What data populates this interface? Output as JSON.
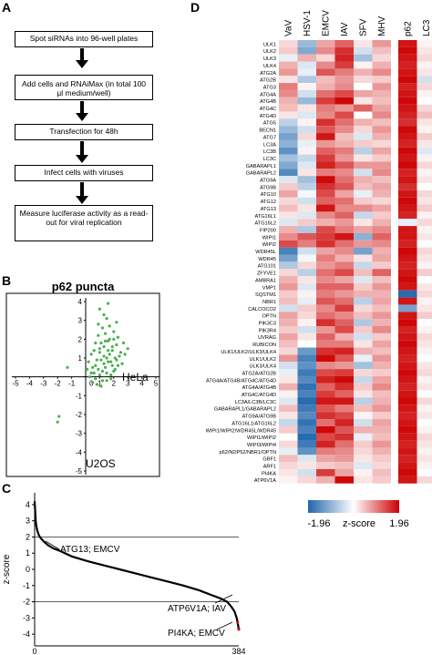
{
  "panels": {
    "A": "A",
    "B": "B",
    "C": "C",
    "D": "D"
  },
  "flow": {
    "steps": [
      "Spot siRNAs into 96-well plates",
      "Add cells and RNAiMax (in total 100 µl medium/well)",
      "Transfection for 48h",
      "Infect cells with viruses",
      "Measure luciferase activity as a read-out for viral replication"
    ]
  },
  "scatter": {
    "title": "p62 puncta",
    "label_right": "HeLa",
    "label_bottom": "U2OS"
  },
  "rank_plot": {
    "ylabel": "z-score",
    "annotations": [
      "ATG13; EMCV",
      "ATP6V1A; IAV",
      "PI4KA; EMCV"
    ]
  },
  "heatmap": {
    "legend_min": "-1.96",
    "legend_label": "z-score",
    "legend_max": "1.96"
  },
  "chart_data": [
    {
      "type": "scatter",
      "title": "p62 puncta",
      "xlim": [
        -5,
        5
      ],
      "ylim": [
        -5,
        4
      ],
      "xticks": [
        "-5",
        "-4",
        "-3",
        "-2",
        "-1",
        "0",
        "1",
        "2",
        "3",
        "4",
        "5"
      ],
      "yticks": [
        "4",
        "3",
        "2",
        "1",
        "0",
        "-1",
        "-2",
        "-3",
        "-4",
        "-5"
      ],
      "x": [
        0.4,
        0.7,
        0.9,
        1.0,
        1.1,
        1.2,
        1.3,
        1.4,
        1.5,
        1.6,
        1.7,
        1.8,
        1.9,
        2.0,
        2.1,
        2.2,
        2.3,
        2.5,
        2.7,
        3.0,
        0.5,
        0.8,
        1.0,
        1.3,
        1.5,
        1.7,
        1.9,
        2.2,
        2.4,
        0.6,
        0.9,
        1.2,
        1.4,
        1.6,
        1.8,
        2.0,
        2.3,
        1.1,
        1.4,
        1.7,
        2.0,
        0.3,
        0.5,
        0.7,
        1.0,
        1.2,
        1.5,
        1.8,
        2.1,
        2.6,
        0.2,
        0.6,
        0.9,
        1.3,
        1.6,
        1.9,
        2.2,
        0.8,
        1.1,
        1.5,
        -1.3,
        -1.9,
        -2.0,
        0.1,
        0.4,
        1.6,
        1.0,
        2.8,
        1.3,
        0.7
      ],
      "y": [
        1.2,
        1.8,
        2.2,
        1.5,
        0.9,
        2.6,
        1.1,
        1.9,
        3.1,
        1.4,
        2.0,
        0.8,
        1.6,
        2.4,
        1.0,
        1.7,
        2.1,
        1.3,
        1.8,
        1.5,
        0.5,
        0.9,
        1.3,
        0.7,
        1.0,
        1.2,
        0.6,
        0.9,
        1.1,
        0.2,
        0.4,
        0.3,
        0.5,
        0.8,
        0.1,
        0.3,
        0.6,
        1.8,
        2.3,
        2.7,
        2.0,
        0.0,
        -0.3,
        -0.1,
        0.1,
        -0.2,
        0.2,
        -0.1,
        0.4,
        0.7,
        0.8,
        1.4,
        2.8,
        3.3,
        1.9,
        1.4,
        2.9,
        -0.4,
        -0.5,
        -0.2,
        0.5,
        -2.1,
        -2.4,
        0.4,
        0.2,
        3.9,
        3.6,
        1.2,
        1.6,
        0.6
      ]
    },
    {
      "type": "line",
      "ylabel": "z-score",
      "xlim": [
        0,
        384
      ],
      "ylim": [
        -4.5,
        4.5
      ],
      "xticks": [
        "0",
        "384"
      ],
      "yticks": [
        "4",
        "3",
        "2",
        "1",
        "0",
        "-1",
        "-2",
        "-3",
        "-4"
      ],
      "reference_lines": [
        2,
        -2
      ],
      "x": [
        0,
        1,
        2,
        3,
        5,
        8,
        12,
        18,
        25,
        35,
        50,
        70,
        100,
        130,
        160,
        190,
        220,
        250,
        280,
        310,
        330,
        350,
        362,
        370,
        376,
        380,
        382,
        384
      ],
      "y": [
        4.2,
        3.6,
        3.0,
        2.7,
        2.4,
        2.1,
        1.9,
        1.7,
        1.5,
        1.3,
        1.1,
        0.8,
        0.5,
        0.25,
        0.0,
        -0.25,
        -0.5,
        -0.75,
        -1.0,
        -1.3,
        -1.55,
        -1.8,
        -2.0,
        -2.3,
        -2.6,
        -3.0,
        -3.3,
        -3.7
      ]
    },
    {
      "type": "heatmap",
      "columns": [
        "VaV",
        "HSV-1",
        "EMCV",
        "IAV",
        "SFV",
        "MHV",
        "p62",
        "LC3"
      ],
      "rows": [
        "ULK1",
        "ULK2",
        "ULK3",
        "ULK4",
        "ATG2A",
        "ATG2B",
        "ATG3",
        "ATG4A",
        "ATG4B",
        "ATG4C",
        "ATG4D",
        "ATG5",
        "BECN1",
        "ATG7",
        "LC3A",
        "LC3B",
        "LC3C",
        "GABARAPL1",
        "GABARAPL2",
        "ATG9A",
        "ATG9B",
        "ATG10",
        "ATG12",
        "ATG13",
        "ATG16L1",
        "ATG16L2",
        "FIP200",
        "WIPI1",
        "WIPI2",
        "WDR45L",
        "WDR45",
        "ATG101",
        "ZFYVE1",
        "AMBRA1",
        "VMP1",
        "SQSTM1",
        "NBR1",
        "CALCOCO2",
        "OPTN",
        "PIK3C3",
        "PIK3R4",
        "UVRAG",
        "RUBICON",
        "ULK1/ULK2/ULK3/ULK4",
        "ULK1/ULK2",
        "ULK3/ULK4",
        "ATG2A/ATG2B",
        "ATG4A/ATG4B/ATG4C/ATG4D",
        "ATG4A/ATG4B",
        "ATG4C/ATG4D",
        "LC3A/LC3B/LC3C",
        "GABARAPL1/GABARAPL2",
        "ATG9A/ATG9B",
        "ATG16L1/ATG16L2",
        "WIPI1/WIPI2/WDR45L/WDR45",
        "WIPI1/WIPI2",
        "WIPI3/WIPI4",
        "p62/NDP52/NBR1/OPTN",
        "GBF1",
        "ARF1",
        "PI4KA",
        "ATP6V1A"
      ],
      "scale": [
        -1.96,
        1.96
      ],
      "values": [
        [
          0.3,
          -0.9,
          0.7,
          1.2,
          0.2,
          0.8,
          1.8,
          0.1
        ],
        [
          0.4,
          -1.1,
          0.9,
          1.6,
          -0.4,
          0.5,
          1.9,
          0.2
        ],
        [
          -0.2,
          0.6,
          0.3,
          1.7,
          -0.8,
          0.3,
          1.8,
          0.3
        ],
        [
          0.6,
          -0.3,
          0.9,
          1.5,
          0.1,
          0.6,
          1.7,
          0.1
        ],
        [
          0.8,
          -0.2,
          1.3,
          1.0,
          0.6,
          0.9,
          1.8,
          0.2
        ],
        [
          0.2,
          -0.7,
          0.5,
          0.8,
          0.3,
          0.4,
          1.9,
          -0.4
        ],
        [
          1.0,
          0.1,
          0.6,
          0.9,
          0.0,
          0.8,
          1.7,
          0.3
        ],
        [
          0.9,
          -0.4,
          1.1,
          1.4,
          0.7,
          0.6,
          1.8,
          0.1
        ],
        [
          0.6,
          -0.9,
          1.5,
          1.9,
          0.2,
          0.5,
          1.9,
          0.0
        ],
        [
          0.5,
          0.2,
          1.0,
          0.8,
          1.2,
          0.7,
          1.8,
          0.3
        ],
        [
          0.2,
          -0.3,
          0.9,
          1.4,
          0.0,
          0.9,
          1.7,
          0.5
        ],
        [
          -0.6,
          0.1,
          1.6,
          1.1,
          0.6,
          0.5,
          1.6,
          0.2
        ],
        [
          -0.9,
          -0.4,
          1.3,
          0.9,
          0.3,
          0.8,
          1.9,
          0.1
        ],
        [
          -1.2,
          0.3,
          1.8,
          0.5,
          -0.3,
          0.6,
          1.8,
          0.4
        ],
        [
          -1.0,
          -0.2,
          0.8,
          0.6,
          0.4,
          0.3,
          1.7,
          0.2
        ],
        [
          -1.4,
          0.1,
          1.2,
          1.0,
          -0.6,
          0.7,
          1.9,
          -0.3
        ],
        [
          -0.8,
          -0.5,
          1.5,
          0.8,
          0.2,
          0.4,
          1.8,
          0.1
        ],
        [
          -1.1,
          -0.3,
          1.7,
          1.3,
          0.8,
          0.8,
          1.9,
          0.3
        ],
        [
          -1.5,
          0.2,
          1.0,
          0.9,
          -0.4,
          0.9,
          1.7,
          0.1
        ],
        [
          -0.3,
          -0.8,
          1.9,
          1.1,
          0.6,
          0.5,
          1.8,
          0.2
        ],
        [
          0.4,
          -0.6,
          1.6,
          1.3,
          0.5,
          0.7,
          1.6,
          0.0
        ],
        [
          0.7,
          -0.1,
          1.4,
          0.7,
          -0.2,
          0.6,
          1.8,
          0.3
        ],
        [
          0.3,
          -0.4,
          1.2,
          1.1,
          0.4,
          0.3,
          1.9,
          0.2
        ],
        [
          0.5,
          0.2,
          1.8,
          0.9,
          0.9,
          0.7,
          1.8,
          0.4
        ],
        [
          0.2,
          -0.3,
          0.9,
          1.2,
          -0.5,
          0.4,
          1.7,
          0.1
        ],
        [
          -0.3,
          0.4,
          0.6,
          0.8,
          0.2,
          0.6,
          -0.2,
          0.3
        ],
        [
          0.6,
          -0.7,
          1.4,
          1.0,
          0.7,
          0.9,
          1.8,
          0.1
        ],
        [
          0.9,
          1.3,
          1.5,
          1.8,
          -1.0,
          1.2,
          1.8,
          0.2
        ],
        [
          1.4,
          1.0,
          1.6,
          1.1,
          0.8,
          0.9,
          1.7,
          0.0
        ],
        [
          -1.6,
          -0.4,
          0.7,
          0.9,
          -1.2,
          0.6,
          1.9,
          0.3
        ],
        [
          -1.2,
          -0.1,
          1.0,
          0.6,
          0.2,
          0.7,
          1.8,
          0.2
        ],
        [
          -0.7,
          0.3,
          0.8,
          1.0,
          -0.5,
          0.4,
          1.7,
          0.1
        ],
        [
          0.3,
          -0.6,
          1.1,
          1.4,
          0.5,
          1.2,
          1.8,
          0.4
        ],
        [
          0.6,
          0.2,
          0.9,
          0.7,
          -0.3,
          0.5,
          1.9,
          0.0
        ],
        [
          0.8,
          -0.3,
          1.2,
          1.2,
          0.4,
          0.8,
          1.8,
          0.2
        ],
        [
          0.4,
          0.1,
          1.0,
          0.8,
          0.6,
          0.6,
          -1.9,
          0.3
        ],
        [
          0.5,
          -0.2,
          1.3,
          1.1,
          -0.6,
          0.7,
          1.8,
          0.1
        ],
        [
          -0.4,
          0.4,
          0.9,
          1.5,
          0.3,
          0.5,
          -1.2,
          0.2
        ],
        [
          0.7,
          0.3,
          1.1,
          0.9,
          0.5,
          0.8,
          1.8,
          0.4
        ],
        [
          0.6,
          0.1,
          1.6,
          1.2,
          -0.7,
          0.6,
          1.9,
          0.0
        ],
        [
          0.4,
          -0.4,
          0.8,
          1.4,
          0.4,
          0.9,
          1.7,
          0.1
        ],
        [
          0.7,
          0.2,
          1.2,
          0.6,
          -0.4,
          0.4,
          1.8,
          0.3
        ],
        [
          0.5,
          0.0,
          1.0,
          1.0,
          0.2,
          0.7,
          1.9,
          0.2
        ],
        [
          0.3,
          -1.3,
          1.6,
          1.7,
          0.6,
          0.5,
          1.8,
          0.1
        ],
        [
          0.8,
          -1.6,
          1.9,
          1.3,
          -0.2,
          0.8,
          1.7,
          0.0
        ],
        [
          -0.4,
          -1.4,
          0.9,
          0.8,
          -0.8,
          0.6,
          1.8,
          0.2
        ],
        [
          -0.2,
          -1.7,
          1.4,
          1.5,
          0.3,
          0.4,
          1.9,
          0.3
        ],
        [
          0.2,
          -1.5,
          1.7,
          1.9,
          -0.5,
          0.7,
          1.8,
          0.1
        ],
        [
          0.6,
          -1.8,
          1.2,
          1.6,
          0.4,
          0.9,
          1.7,
          0.2
        ],
        [
          0.1,
          -1.6,
          1.5,
          1.2,
          0.2,
          0.5,
          1.8,
          0.0
        ],
        [
          -0.3,
          -1.9,
          1.8,
          1.8,
          -0.6,
          0.6,
          1.9,
          0.3
        ],
        [
          0.5,
          -1.7,
          1.3,
          1.0,
          0.5,
          0.8,
          1.8,
          0.1
        ],
        [
          0.2,
          -1.5,
          1.6,
          1.4,
          0.1,
          0.4,
          1.7,
          0.2
        ],
        [
          -0.5,
          -1.8,
          1.1,
          1.7,
          -0.4,
          0.7,
          1.8,
          0.0
        ],
        [
          0.4,
          -1.6,
          1.9,
          1.3,
          0.6,
          0.6,
          1.9,
          0.1
        ],
        [
          0.0,
          -1.9,
          1.4,
          1.6,
          -0.2,
          0.5,
          1.8,
          0.3
        ],
        [
          0.3,
          -1.7,
          1.7,
          1.1,
          0.4,
          0.8,
          1.7,
          0.2
        ],
        [
          -0.2,
          -1.4,
          1.0,
          0.9,
          0.3,
          0.6,
          1.8,
          0.1
        ],
        [
          0.5,
          -0.3,
          0.7,
          0.8,
          0.2,
          0.4,
          1.7,
          0.2
        ],
        [
          0.3,
          0.2,
          0.4,
          0.5,
          -0.3,
          0.3,
          1.8,
          0.1
        ],
        [
          0.2,
          -0.4,
          1.5,
          0.7,
          0.1,
          0.5,
          1.9,
          0.0
        ],
        [
          0.1,
          0.3,
          0.6,
          1.9,
          0.2,
          0.4,
          1.8,
          0.3
        ]
      ]
    }
  ]
}
